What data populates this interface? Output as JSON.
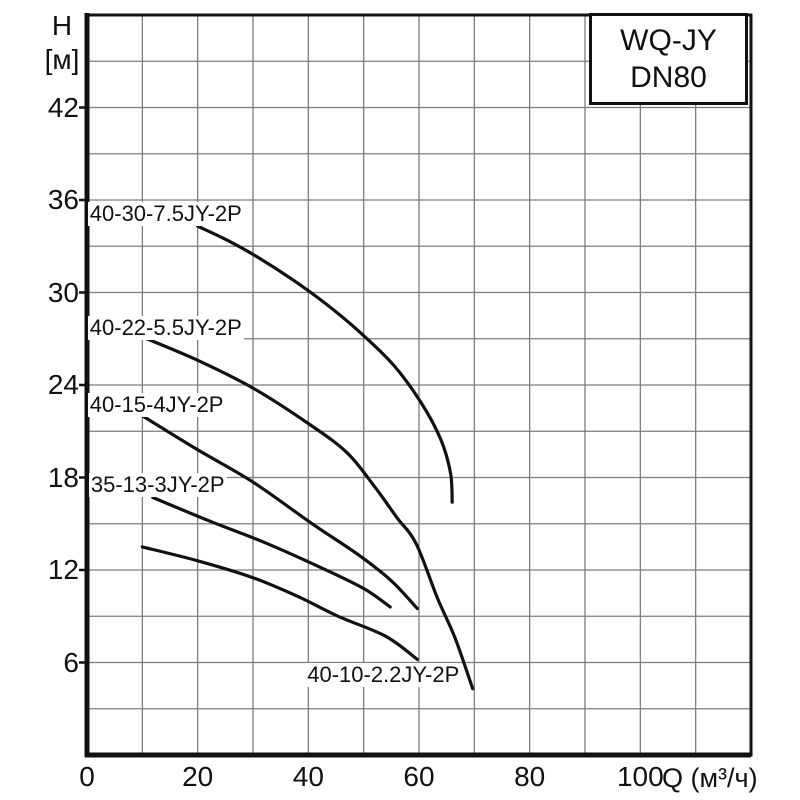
{
  "legend": {
    "line1": "WQ-JY",
    "line2": "DN80"
  },
  "y_axis": {
    "title_line1": "H",
    "title_line2": "[м]",
    "ticks": [
      42,
      36,
      30,
      24,
      18,
      12,
      6
    ]
  },
  "x_axis": {
    "ticks": [
      0,
      20,
      40,
      60,
      80,
      100
    ],
    "unit_label": "Q (м³/ч)"
  },
  "colors": {
    "curve": "#111111",
    "grid": "#7d7d7d",
    "frame": "#111111",
    "text": "#111111",
    "background": "#ffffff"
  },
  "chart_data": {
    "type": "line",
    "title": "WQ-JY DN80 pump performance curves",
    "xlabel": "Q (м³/ч)",
    "ylabel": "H [м]",
    "xlim": [
      0,
      120
    ],
    "ylim": [
      0,
      48
    ],
    "grid_step_x": 10,
    "grid_step_y": 3,
    "labeled_y_ticks": [
      6,
      12,
      18,
      24,
      30,
      36,
      42
    ],
    "labeled_x_ticks": [
      0,
      20,
      40,
      60,
      80,
      100
    ],
    "legend_position": "top-right",
    "grid": true,
    "series": [
      {
        "name": "40-30-7.5JY-2P",
        "label_pos": [
          0.5,
          35.9
        ],
        "points": [
          [
            20,
            34.3
          ],
          [
            25.3,
            33.4
          ],
          [
            30.8,
            32.3
          ],
          [
            37.3,
            30.8
          ],
          [
            43.4,
            29.2
          ],
          [
            49.4,
            27.4
          ],
          [
            55.4,
            25.3
          ],
          [
            60.3,
            22.9
          ],
          [
            63.9,
            20.5
          ],
          [
            65.7,
            18.3
          ],
          [
            66,
            16.4
          ]
        ]
      },
      {
        "name": "40-22-5.5JY-2P",
        "label_pos": [
          0.5,
          28.5
        ],
        "points": [
          [
            10.1,
            27.1
          ],
          [
            20,
            25.6
          ],
          [
            30,
            23.8
          ],
          [
            40,
            21.5
          ],
          [
            47,
            19.6
          ],
          [
            52,
            17.4
          ],
          [
            56,
            15.4
          ],
          [
            59.5,
            13.7
          ],
          [
            63.3,
            10.2
          ],
          [
            66.5,
            7.6
          ],
          [
            69.7,
            4.3
          ]
        ]
      },
      {
        "name": "40-15-4JY-2P",
        "label_pos": [
          0.5,
          23.5
        ],
        "points": [
          [
            10,
            22
          ],
          [
            20,
            19.8
          ],
          [
            30,
            17.7
          ],
          [
            40.7,
            15
          ],
          [
            49,
            13
          ],
          [
            55,
            11.3
          ],
          [
            59.7,
            9.5
          ]
        ]
      },
      {
        "name": "35-13-3JY-2P",
        "label_pos": [
          0.7,
          18.3
        ],
        "points": [
          [
            11.9,
            16.7
          ],
          [
            22,
            15.2
          ],
          [
            32,
            13.8
          ],
          [
            42,
            12.2
          ],
          [
            50,
            10.8
          ],
          [
            54.8,
            9.6
          ]
        ]
      },
      {
        "name": "40-10-2.2JY-2P",
        "label_pos": [
          39.8,
          5.95
        ],
        "points": [
          [
            10,
            13.5
          ],
          [
            20,
            12.6
          ],
          [
            30,
            11.5
          ],
          [
            38,
            10.3
          ],
          [
            45.4,
            9
          ],
          [
            54,
            7.7
          ],
          [
            59.7,
            6.2
          ]
        ]
      }
    ]
  }
}
